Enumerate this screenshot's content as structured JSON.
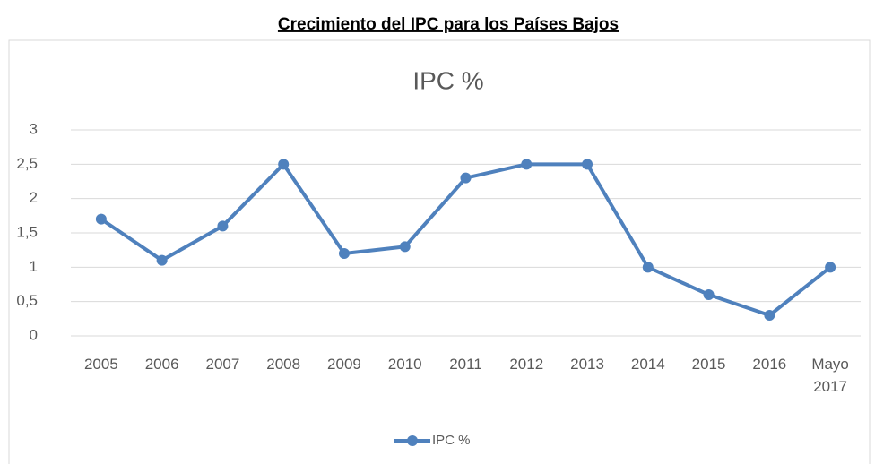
{
  "heading": "Crecimiento del IPC para los Países Bajos",
  "chart_data": {
    "type": "line",
    "title": "IPC %",
    "categories": [
      "2005",
      "2006",
      "2007",
      "2008",
      "2009",
      "2010",
      "2011",
      "2012",
      "2013",
      "2014",
      "2015",
      "2016",
      "Mayo 2017"
    ],
    "series": [
      {
        "name": "IPC %",
        "color": "#4f81bd",
        "values": [
          1.7,
          1.1,
          1.6,
          2.5,
          1.2,
          1.3,
          2.3,
          2.5,
          2.5,
          1.0,
          0.6,
          0.3,
          1.0
        ]
      }
    ],
    "ylim": [
      0,
      3
    ],
    "yticks": [
      0,
      {
        "value": 0.5,
        "label": "0,5"
      },
      1,
      {
        "value": 1.5,
        "label": "1,5"
      },
      2,
      {
        "value": 2.5,
        "label": "2,5"
      },
      3
    ],
    "grid": true,
    "legend": "bottom"
  }
}
